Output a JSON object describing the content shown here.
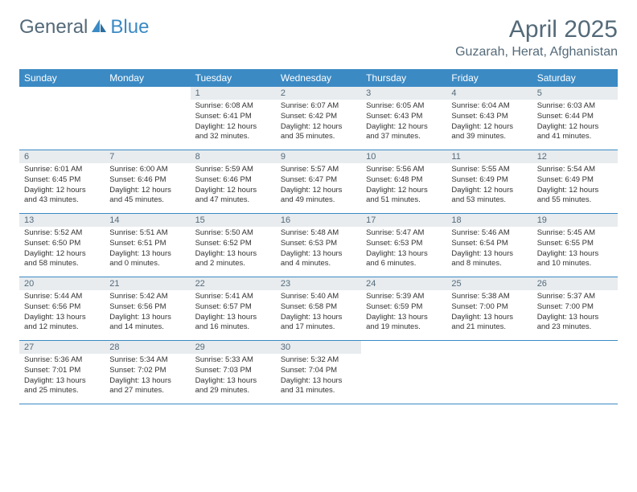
{
  "brand": {
    "part1": "General",
    "part2": "Blue"
  },
  "title": "April 2025",
  "location": "Guzarah, Herat, Afghanistan",
  "colors": {
    "header_bg": "#3b8ac4",
    "header_text": "#ffffff",
    "daynum_bg": "#e8ecef",
    "text_muted": "#546a79",
    "border": "#3b8ac4"
  },
  "fonts": {
    "title_size": 30,
    "location_size": 16,
    "dayhead_size": 12,
    "daynum_size": 11,
    "body_size": 9.5
  },
  "day_headers": [
    "Sunday",
    "Monday",
    "Tuesday",
    "Wednesday",
    "Thursday",
    "Friday",
    "Saturday"
  ],
  "weeks": [
    [
      {
        "empty": true
      },
      {
        "empty": true
      },
      {
        "num": "1",
        "sunrise": "6:08 AM",
        "sunset": "6:41 PM",
        "daylight": "12 hours and 32 minutes."
      },
      {
        "num": "2",
        "sunrise": "6:07 AM",
        "sunset": "6:42 PM",
        "daylight": "12 hours and 35 minutes."
      },
      {
        "num": "3",
        "sunrise": "6:05 AM",
        "sunset": "6:43 PM",
        "daylight": "12 hours and 37 minutes."
      },
      {
        "num": "4",
        "sunrise": "6:04 AM",
        "sunset": "6:43 PM",
        "daylight": "12 hours and 39 minutes."
      },
      {
        "num": "5",
        "sunrise": "6:03 AM",
        "sunset": "6:44 PM",
        "daylight": "12 hours and 41 minutes."
      }
    ],
    [
      {
        "num": "6",
        "sunrise": "6:01 AM",
        "sunset": "6:45 PM",
        "daylight": "12 hours and 43 minutes."
      },
      {
        "num": "7",
        "sunrise": "6:00 AM",
        "sunset": "6:46 PM",
        "daylight": "12 hours and 45 minutes."
      },
      {
        "num": "8",
        "sunrise": "5:59 AM",
        "sunset": "6:46 PM",
        "daylight": "12 hours and 47 minutes."
      },
      {
        "num": "9",
        "sunrise": "5:57 AM",
        "sunset": "6:47 PM",
        "daylight": "12 hours and 49 minutes."
      },
      {
        "num": "10",
        "sunrise": "5:56 AM",
        "sunset": "6:48 PM",
        "daylight": "12 hours and 51 minutes."
      },
      {
        "num": "11",
        "sunrise": "5:55 AM",
        "sunset": "6:49 PM",
        "daylight": "12 hours and 53 minutes."
      },
      {
        "num": "12",
        "sunrise": "5:54 AM",
        "sunset": "6:49 PM",
        "daylight": "12 hours and 55 minutes."
      }
    ],
    [
      {
        "num": "13",
        "sunrise": "5:52 AM",
        "sunset": "6:50 PM",
        "daylight": "12 hours and 58 minutes."
      },
      {
        "num": "14",
        "sunrise": "5:51 AM",
        "sunset": "6:51 PM",
        "daylight": "13 hours and 0 minutes."
      },
      {
        "num": "15",
        "sunrise": "5:50 AM",
        "sunset": "6:52 PM",
        "daylight": "13 hours and 2 minutes."
      },
      {
        "num": "16",
        "sunrise": "5:48 AM",
        "sunset": "6:53 PM",
        "daylight": "13 hours and 4 minutes."
      },
      {
        "num": "17",
        "sunrise": "5:47 AM",
        "sunset": "6:53 PM",
        "daylight": "13 hours and 6 minutes."
      },
      {
        "num": "18",
        "sunrise": "5:46 AM",
        "sunset": "6:54 PM",
        "daylight": "13 hours and 8 minutes."
      },
      {
        "num": "19",
        "sunrise": "5:45 AM",
        "sunset": "6:55 PM",
        "daylight": "13 hours and 10 minutes."
      }
    ],
    [
      {
        "num": "20",
        "sunrise": "5:44 AM",
        "sunset": "6:56 PM",
        "daylight": "13 hours and 12 minutes."
      },
      {
        "num": "21",
        "sunrise": "5:42 AM",
        "sunset": "6:56 PM",
        "daylight": "13 hours and 14 minutes."
      },
      {
        "num": "22",
        "sunrise": "5:41 AM",
        "sunset": "6:57 PM",
        "daylight": "13 hours and 16 minutes."
      },
      {
        "num": "23",
        "sunrise": "5:40 AM",
        "sunset": "6:58 PM",
        "daylight": "13 hours and 17 minutes."
      },
      {
        "num": "24",
        "sunrise": "5:39 AM",
        "sunset": "6:59 PM",
        "daylight": "13 hours and 19 minutes."
      },
      {
        "num": "25",
        "sunrise": "5:38 AM",
        "sunset": "7:00 PM",
        "daylight": "13 hours and 21 minutes."
      },
      {
        "num": "26",
        "sunrise": "5:37 AM",
        "sunset": "7:00 PM",
        "daylight": "13 hours and 23 minutes."
      }
    ],
    [
      {
        "num": "27",
        "sunrise": "5:36 AM",
        "sunset": "7:01 PM",
        "daylight": "13 hours and 25 minutes."
      },
      {
        "num": "28",
        "sunrise": "5:34 AM",
        "sunset": "7:02 PM",
        "daylight": "13 hours and 27 minutes."
      },
      {
        "num": "29",
        "sunrise": "5:33 AM",
        "sunset": "7:03 PM",
        "daylight": "13 hours and 29 minutes."
      },
      {
        "num": "30",
        "sunrise": "5:32 AM",
        "sunset": "7:04 PM",
        "daylight": "13 hours and 31 minutes."
      },
      {
        "empty": true
      },
      {
        "empty": true
      },
      {
        "empty": true
      }
    ]
  ]
}
